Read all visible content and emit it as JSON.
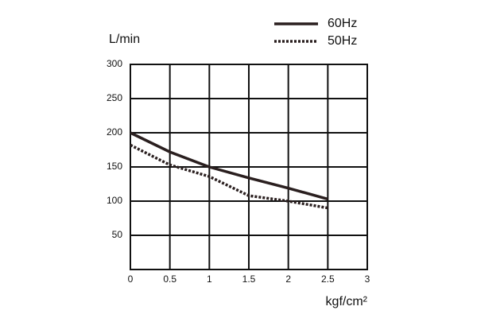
{
  "chart_data": {
    "type": "line",
    "y_label": "L/min",
    "x_label": "kgf/cm²",
    "x": [
      0,
      0.5,
      1,
      1.5,
      2,
      2.5
    ],
    "series": [
      {
        "name": "60Hz",
        "color": "#2a1f1f",
        "dash": "solid",
        "values": [
          200,
          172,
          150,
          134,
          119,
          103
        ]
      },
      {
        "name": "50Hz",
        "color": "#2a1f1f",
        "dash": "dotted",
        "values": [
          182,
          153,
          136,
          108,
          100,
          90
        ]
      }
    ],
    "xlim": [
      0,
      3
    ],
    "xticks": [
      0,
      0.5,
      1,
      1.5,
      2,
      2.5,
      3
    ],
    "ylim": [
      0,
      300
    ],
    "yticks": [
      50,
      100,
      150,
      200,
      250,
      300
    ],
    "grid": true
  }
}
